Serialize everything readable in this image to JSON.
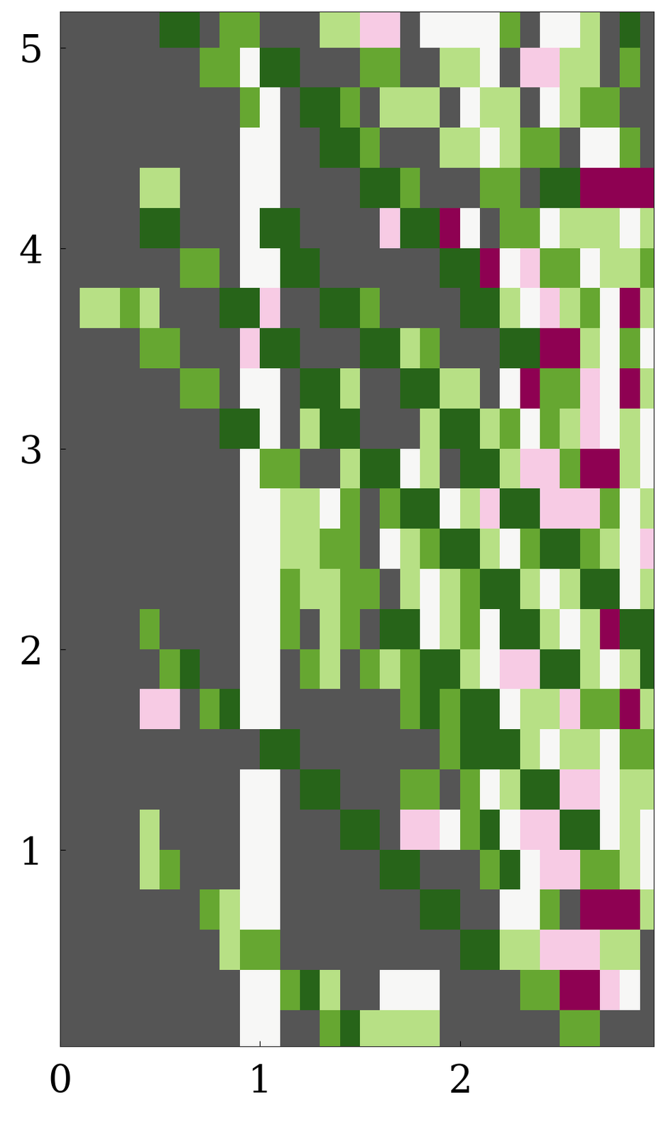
{
  "chart_data": {
    "type": "heatmap",
    "x_edges": [
      0,
      0.1,
      0.2,
      0.3,
      0.4,
      0.5,
      0.6,
      0.7,
      0.8,
      0.9,
      1.0,
      1.1,
      1.2,
      1.3,
      1.4,
      1.5,
      1.6,
      1.7,
      1.8,
      1.9,
      2.0,
      2.1,
      2.2,
      2.3,
      2.4,
      2.5,
      2.6,
      2.7,
      2.8,
      2.9,
      3.0
    ],
    "y_edges": [
      5.2,
      5.0,
      4.8,
      4.6,
      4.4,
      4.2,
      4.0,
      3.8,
      3.6,
      3.4,
      3.2,
      3.0,
      2.8,
      2.6,
      2.4,
      2.2,
      2.0,
      1.8,
      1.6,
      1.4,
      1.2,
      1.0,
      0.8,
      0.6,
      0.4,
      0.2,
      0.0
    ],
    "cells": [
      [
        null,
        null,
        null,
        null,
        null,
        1,
        1,
        null,
        0.7,
        0.7,
        null,
        null,
        null,
        0.4,
        0.4,
        -0.3,
        -0.3,
        null,
        0,
        0,
        0,
        0,
        0.7,
        null,
        0,
        0,
        0.4,
        null,
        1,
        null
      ],
      [
        null,
        null,
        null,
        null,
        null,
        null,
        null,
        0.7,
        0.7,
        0,
        1,
        1,
        null,
        null,
        null,
        0.7,
        0.7,
        null,
        null,
        0.4,
        0.4,
        0,
        null,
        -0.3,
        -0.3,
        0.4,
        0.4,
        null,
        0.7,
        null
      ],
      [
        null,
        null,
        null,
        null,
        null,
        null,
        null,
        null,
        null,
        0.7,
        0,
        null,
        1,
        1,
        0.7,
        null,
        0.4,
        0.4,
        0.4,
        null,
        0,
        0.4,
        0.4,
        null,
        0,
        0.4,
        0.7,
        0.7,
        null,
        null
      ],
      [
        null,
        null,
        null,
        null,
        null,
        null,
        null,
        null,
        null,
        0,
        0,
        null,
        null,
        1,
        1,
        0.7,
        null,
        null,
        null,
        0.4,
        0.4,
        0,
        0.4,
        0.7,
        0.7,
        null,
        0,
        0,
        0.7,
        null
      ],
      [
        null,
        null,
        null,
        null,
        0.4,
        0.4,
        null,
        null,
        null,
        0,
        0,
        null,
        null,
        null,
        null,
        1,
        1,
        0.7,
        null,
        null,
        null,
        0.7,
        0.7,
        null,
        1,
        1,
        -1,
        -1,
        -1,
        -1
      ],
      [
        null,
        null,
        null,
        null,
        1,
        1,
        null,
        null,
        null,
        0,
        1,
        1,
        null,
        null,
        null,
        null,
        -0.3,
        1,
        1,
        -1,
        0,
        null,
        0.7,
        0.7,
        0,
        0.4,
        0.4,
        0.4,
        0,
        0.4
      ],
      [
        null,
        null,
        null,
        null,
        null,
        null,
        0.7,
        0.7,
        null,
        0,
        0,
        1,
        1,
        null,
        null,
        null,
        null,
        null,
        null,
        1,
        1,
        -1,
        0,
        -0.3,
        0.7,
        0.7,
        0,
        0.4,
        0.4,
        0.7
      ],
      [
        null,
        0.4,
        0.4,
        0.7,
        0.4,
        null,
        null,
        null,
        1,
        1,
        -0.3,
        null,
        null,
        1,
        1,
        0.7,
        null,
        null,
        null,
        null,
        1,
        1,
        0.4,
        0,
        -0.3,
        0.4,
        0.7,
        0,
        -1,
        0.4
      ],
      [
        null,
        null,
        null,
        null,
        0.7,
        0.7,
        null,
        null,
        null,
        -0.3,
        1,
        1,
        null,
        null,
        null,
        1,
        1,
        0.4,
        0.7,
        null,
        null,
        null,
        1,
        1,
        -1,
        -1,
        0.4,
        0,
        0.7,
        0
      ],
      [
        null,
        null,
        null,
        null,
        null,
        null,
        0.7,
        0.7,
        null,
        0,
        0,
        null,
        1,
        1,
        0.4,
        null,
        null,
        1,
        1,
        0.4,
        0.4,
        null,
        0,
        -1,
        0.7,
        0.7,
        -0.3,
        0,
        -1,
        0.4
      ],
      [
        null,
        null,
        null,
        null,
        null,
        null,
        null,
        null,
        1,
        1,
        0,
        null,
        0.4,
        1,
        1,
        null,
        null,
        null,
        0.4,
        1,
        1,
        0.4,
        0.7,
        0,
        0.7,
        0.4,
        -0.3,
        0,
        0.4,
        0
      ],
      [
        null,
        null,
        null,
        null,
        null,
        null,
        null,
        null,
        null,
        0,
        0.7,
        0.7,
        null,
        null,
        0.4,
        1,
        1,
        0,
        0.4,
        null,
        1,
        1,
        0.4,
        -0.3,
        -0.3,
        0.7,
        -1,
        -1,
        0.4,
        0
      ],
      [
        null,
        null,
        null,
        null,
        null,
        null,
        null,
        null,
        null,
        0,
        0,
        0.4,
        0.4,
        0,
        0.7,
        null,
        0.7,
        1,
        1,
        0,
        0.4,
        -0.3,
        1,
        1,
        -0.3,
        -0.3,
        -0.3,
        0.7,
        0,
        0.4
      ],
      [
        null,
        null,
        null,
        null,
        null,
        null,
        null,
        null,
        null,
        0,
        0,
        0.4,
        0.4,
        0.7,
        0.7,
        null,
        0,
        0.4,
        0.7,
        1,
        1,
        0.4,
        0,
        0.7,
        1,
        1,
        0.7,
        0.4,
        0,
        -0.3
      ],
      [
        null,
        null,
        null,
        null,
        null,
        null,
        null,
        null,
        null,
        0,
        0,
        0.7,
        0.4,
        0.4,
        0.7,
        0.7,
        null,
        0.4,
        0,
        0.4,
        0.7,
        1,
        1,
        0.4,
        0,
        0.4,
        1,
        1,
        0,
        0.4
      ],
      [
        null,
        null,
        null,
        null,
        0.7,
        null,
        null,
        null,
        null,
        0,
        0,
        0.7,
        null,
        0.4,
        0.7,
        null,
        1,
        1,
        0,
        0.4,
        0.7,
        0,
        1,
        1,
        0.4,
        0,
        0.4,
        -1,
        1,
        1
      ],
      [
        null,
        null,
        null,
        null,
        null,
        0.7,
        1,
        null,
        null,
        0,
        0,
        null,
        0.7,
        0.4,
        null,
        0.7,
        0.4,
        0.7,
        1,
        1,
        0.4,
        0,
        -0.3,
        -0.3,
        1,
        1,
        0.4,
        0,
        0.4,
        1
      ],
      [
        null,
        null,
        null,
        null,
        -0.3,
        -0.3,
        null,
        0.7,
        1,
        0,
        0,
        null,
        null,
        null,
        null,
        null,
        null,
        0.7,
        1,
        0.7,
        1,
        1,
        0,
        0.4,
        0.4,
        -0.3,
        0.7,
        0.7,
        -1,
        0.4
      ],
      [
        null,
        null,
        null,
        null,
        null,
        null,
        null,
        null,
        null,
        null,
        1,
        1,
        null,
        null,
        null,
        null,
        null,
        null,
        null,
        0.7,
        1,
        1,
        1,
        0.4,
        0,
        0.4,
        0.4,
        0,
        0.7,
        0.7
      ],
      [
        null,
        null,
        null,
        null,
        null,
        null,
        null,
        null,
        null,
        0,
        0,
        null,
        1,
        1,
        null,
        null,
        null,
        0.7,
        0.7,
        null,
        0.7,
        0,
        0.4,
        1,
        1,
        -0.3,
        -0.3,
        0,
        0.4,
        0.4
      ],
      [
        null,
        null,
        null,
        null,
        0.4,
        null,
        null,
        null,
        null,
        0,
        0,
        null,
        null,
        null,
        1,
        1,
        null,
        -0.3,
        -0.3,
        0,
        0.7,
        1,
        0,
        -0.3,
        -0.3,
        1,
        1,
        0,
        0.4,
        0
      ],
      [
        null,
        null,
        null,
        null,
        0.4,
        0.7,
        null,
        null,
        null,
        0,
        0,
        null,
        null,
        null,
        null,
        null,
        1,
        1,
        null,
        null,
        null,
        0.7,
        1,
        0,
        -0.3,
        -0.3,
        0.7,
        0.7,
        0.4,
        0
      ],
      [
        null,
        null,
        null,
        null,
        null,
        null,
        null,
        0.7,
        0.4,
        0,
        0,
        null,
        null,
        null,
        null,
        null,
        null,
        null,
        1,
        1,
        null,
        null,
        0,
        0,
        0.7,
        null,
        -1,
        -1,
        -1,
        0.4
      ],
      [
        null,
        null,
        null,
        null,
        null,
        null,
        null,
        null,
        0.4,
        0.7,
        0.7,
        null,
        null,
        null,
        null,
        null,
        null,
        null,
        null,
        null,
        1,
        1,
        0.4,
        0.4,
        -0.3,
        -0.3,
        -0.3,
        0.4,
        0.4,
        null
      ],
      [
        null,
        null,
        null,
        null,
        null,
        null,
        null,
        null,
        null,
        0,
        0,
        0.7,
        1,
        0.4,
        null,
        null,
        0,
        0,
        0,
        null,
        null,
        null,
        null,
        0.7,
        0.7,
        -1,
        -1,
        -0.3,
        0,
        null
      ],
      [
        null,
        null,
        null,
        null,
        null,
        null,
        null,
        null,
        null,
        0,
        0,
        null,
        null,
        0.7,
        1,
        0.4,
        0.4,
        0.4,
        0.4,
        null,
        null,
        null,
        null,
        null,
        null,
        0.7,
        0.7,
        null,
        null,
        null
      ]
    ],
    "xlim": [
      0,
      2.97
    ],
    "ylim": [
      0.02,
      5.18
    ],
    "xticks": [
      0,
      1,
      2
    ],
    "yticks": [
      1,
      2,
      3,
      4,
      5
    ],
    "grid": false
  }
}
